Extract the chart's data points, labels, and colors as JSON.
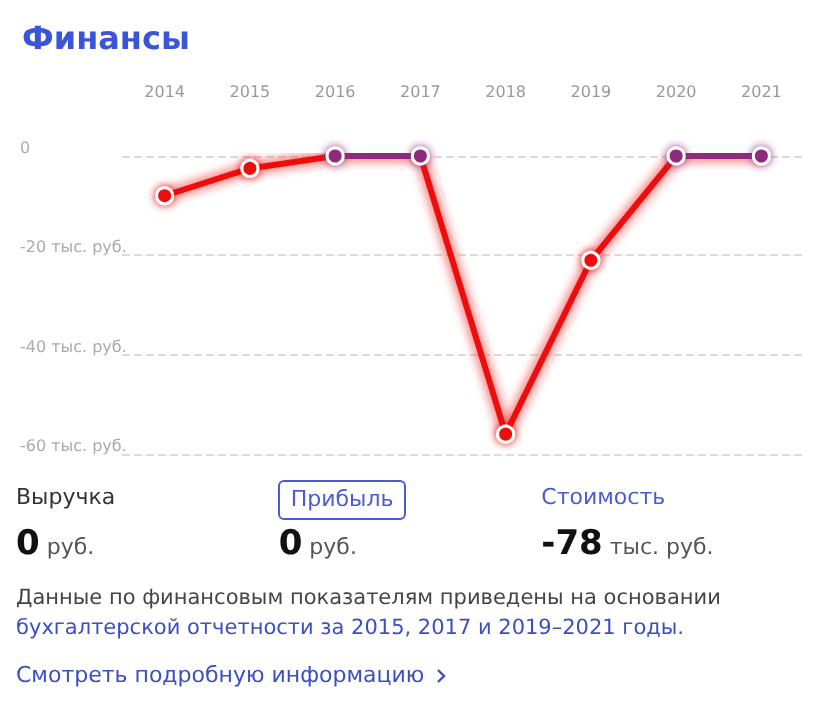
{
  "chart_data": {
    "type": "line",
    "title": "Финансы",
    "categories": [
      "2014",
      "2015",
      "2016",
      "2017",
      "2018",
      "2019",
      "2020",
      "2021"
    ],
    "series": [
      {
        "color": "#ee1111",
        "colors": [
          "#ee1111",
          "#ee1111",
          "#8e2a7e",
          "#8e2a7e",
          "#ee1111",
          "#ee1111",
          "#8e2a7e",
          "#8e2a7e"
        ],
        "values": [
          -8,
          -2.5,
          0,
          0,
          -56,
          -21,
          0,
          0
        ]
      }
    ],
    "ylim": [
      -60,
      0
    ],
    "yticks": [
      {
        "value": -60,
        "label": "-60 тыс. руб."
      },
      {
        "value": -40,
        "label": "-40 тыс. руб."
      },
      {
        "value": -20,
        "label": "-20 тыс. руб."
      },
      0
    ],
    "grid": "y",
    "marker": "circle",
    "line_style": "solid",
    "annotations": [
      "Выручка",
      "0 руб.",
      "Прибыль",
      "0 руб.",
      "Стоимость",
      "-78 тыс. руб.",
      "Данные по финансовым показателям приведены на основании",
      "бухгалтерской отчетности за 2015, 2017 и 2019–2021 годы.",
      "Смотреть подробную информацию"
    ]
  }
}
